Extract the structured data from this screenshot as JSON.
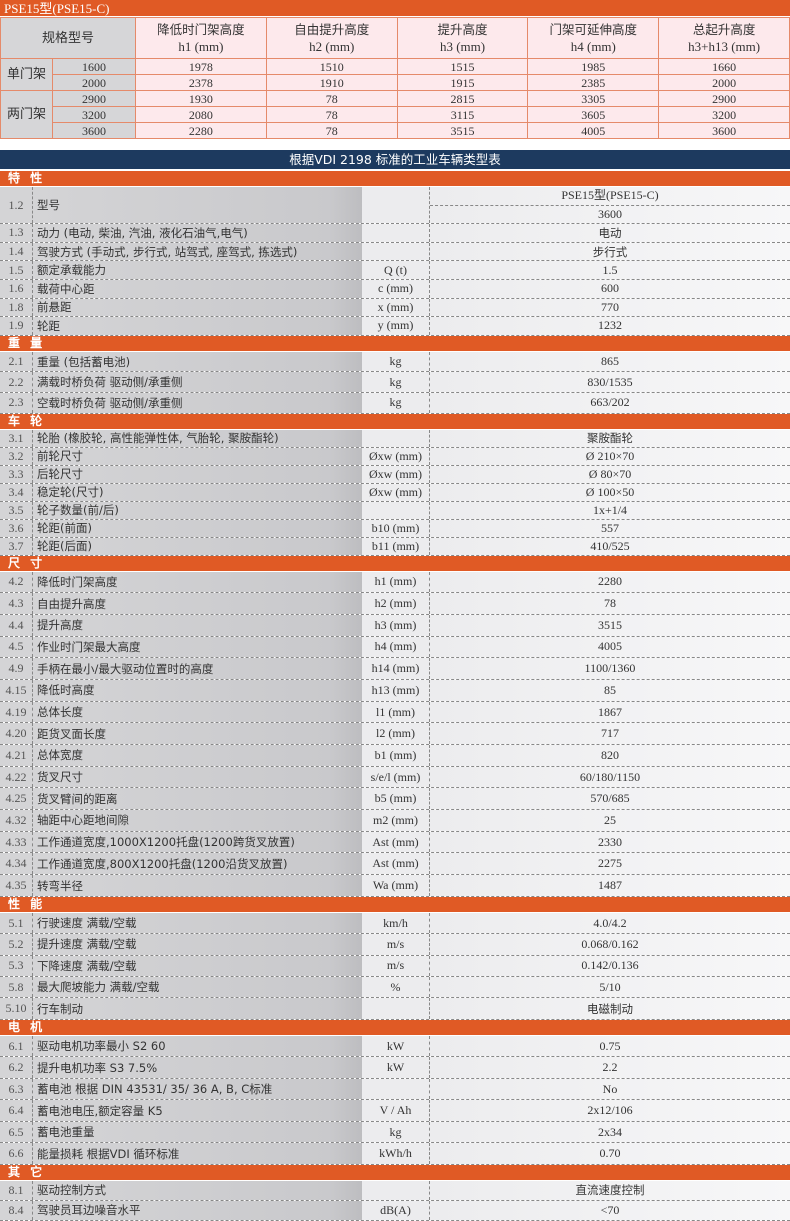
{
  "mast_table": {
    "title": "PSE15型(PSE15-C)",
    "spec_label": "规格型号",
    "columns": [
      [
        "降低时门架高度",
        "h1 (mm)"
      ],
      [
        "自由提升高度",
        "h2 (mm)"
      ],
      [
        "提升高度",
        "h3 (mm)"
      ],
      [
        "门架可延伸高度",
        "h4 (mm)"
      ],
      [
        "总起升高度",
        "h3+h13 (mm)"
      ]
    ],
    "groups": [
      {
        "name": "单门架",
        "rows": [
          [
            "1600",
            "1978",
            "1510",
            "1515",
            "1985",
            "1660"
          ],
          [
            "2000",
            "2378",
            "1910",
            "1915",
            "2385",
            "2000"
          ]
        ]
      },
      {
        "name": "两门架",
        "rows": [
          [
            "2900",
            "1930",
            "78",
            "2815",
            "3305",
            "2900"
          ],
          [
            "3200",
            "2080",
            "78",
            "3115",
            "3605",
            "3200"
          ],
          [
            "3600",
            "2280",
            "78",
            "3515",
            "4005",
            "3600"
          ]
        ]
      }
    ]
  },
  "vdi_title": "根据VDI 2198 标准的工业车辆类型表",
  "sections": [
    {
      "title": "特 性",
      "h": 18.6,
      "rows": [
        [
          "1.2",
          "型号",
          "",
          [
            "PSE15型(PSE15-C)",
            "3600"
          ]
        ],
        [
          "1.3",
          "动力 (电动, 柴油, 汽油, 液化石油气,电气)",
          "",
          "电动"
        ],
        [
          "1.4",
          "驾驶方式 (手动式, 步行式, 站驾式, 座驾式, 拣选式)",
          "",
          "步行式"
        ],
        [
          "1.5",
          "额定承载能力",
          "Q (t)",
          "1.5"
        ],
        [
          "1.6",
          "载荷中心距",
          "c (mm)",
          "600"
        ],
        [
          "1.8",
          "前悬距",
          "x (mm)",
          "770"
        ],
        [
          "1.9",
          "轮距",
          "y (mm)",
          "1232"
        ]
      ]
    },
    {
      "title": "重 量",
      "h": 20.6,
      "rows": [
        [
          "2.1",
          "重量 (包括蓄电池)",
          "kg",
          "865"
        ],
        [
          "2.2",
          "满载时桥负荷   驱动侧/承重侧",
          "kg",
          "830/1535"
        ],
        [
          "2.3",
          "空载时桥负荷   驱动侧/承重侧",
          "kg",
          "663/202"
        ]
      ]
    },
    {
      "title": "车 轮",
      "h": 18,
      "rows": [
        [
          "3.1",
          "轮胎 (橡胶轮, 高性能弹性体, 气胎轮, 聚胺酯轮)",
          "",
          "聚胺酯轮"
        ],
        [
          "3.2",
          "前轮尺寸",
          "Øxw (mm)",
          "Ø 210×70"
        ],
        [
          "3.3",
          "后轮尺寸",
          "Øxw (mm)",
          "Ø   80×70"
        ],
        [
          "3.4",
          "稳定轮(尺寸)",
          "Øxw (mm)",
          "Ø 100×50"
        ],
        [
          "3.5",
          "轮子数量(前/后)",
          "",
          "1x+1/4"
        ],
        [
          "3.6",
          "轮距(前面)",
          "b10 (mm)",
          "557"
        ],
        [
          "3.7",
          "轮距(后面)",
          "b11 (mm)",
          "410/525"
        ]
      ]
    },
    {
      "title": "尺 寸",
      "h": 21.7,
      "rows": [
        [
          "4.2",
          "降低时门架高度",
          "h1 (mm)",
          "2280"
        ],
        [
          "4.3",
          "自由提升高度",
          "h2 (mm)",
          "78"
        ],
        [
          "4.4",
          "提升高度",
          "h3 (mm)",
          "3515"
        ],
        [
          "4.5",
          "作业时门架最大高度",
          "h4 (mm)",
          "4005"
        ],
        [
          "4.9",
          "手柄在最小/最大驱动位置时的高度",
          "h14 (mm)",
          "1100/1360"
        ],
        [
          "4.15",
          "降低时高度",
          "h13 (mm)",
          "85"
        ],
        [
          "4.19",
          "总体长度",
          "l1 (mm)",
          "1867"
        ],
        [
          "4.20",
          "距货叉面长度",
          "l2 (mm)",
          "717"
        ],
        [
          "4.21",
          "总体宽度",
          "b1 (mm)",
          "820"
        ],
        [
          "4.22",
          "货叉尺寸",
          "s/e/l (mm)",
          "60/180/1150"
        ],
        [
          "4.25",
          "货叉臂间的距离",
          "b5 (mm)",
          "570/685"
        ],
        [
          "4.32",
          "轴距中心距地间隙",
          "m2 (mm)",
          "25"
        ],
        [
          "4.33",
          "工作通道宽度,1000X1200托盘(1200跨货叉放置)",
          "Ast (mm)",
          "2330"
        ],
        [
          "4.34",
          "工作通道宽度,800X1200托盘(1200沿货叉放置)",
          "Ast (mm)",
          "2275"
        ],
        [
          "4.35",
          "转弯半径",
          "Wa (mm)",
          "1487"
        ]
      ]
    },
    {
      "title": "性 能",
      "h": 21.4,
      "rows": [
        [
          "5.1",
          "行驶速度   满载/空载",
          "km/h",
          "4.0/4.2"
        ],
        [
          "5.2",
          "提升速度   满载/空载",
          "m/s",
          "0.068/0.162"
        ],
        [
          "5.3",
          "下降速度   满载/空载",
          "m/s",
          "0.142/0.136"
        ],
        [
          "5.8",
          "最大爬坡能力   满载/空载",
          "%",
          "5/10"
        ],
        [
          "5.10",
          "行车制动",
          "",
          "电磁制动"
        ]
      ]
    },
    {
      "title": "电 机",
      "h": 21.5,
      "rows": [
        [
          "6.1",
          "驱动电机功率最小 S2 60",
          "kW",
          "0.75"
        ],
        [
          "6.2",
          "提升电机功率 S3  7.5%",
          "kW",
          "2.2"
        ],
        [
          "6.3",
          "蓄电池 根据 DIN 43531/ 35/ 36 A, B, C标准",
          "",
          "No"
        ],
        [
          "6.4",
          "蓄电池电压,额定容量 K5",
          "V / Ah",
          "2x12/106"
        ],
        [
          "6.5",
          "蓄电池重量",
          "kg",
          "2x34"
        ],
        [
          "6.6",
          "能量损耗  根据VDI 循环标准",
          "kWh/h",
          "0.70"
        ]
      ]
    },
    {
      "title": "其 它",
      "h": 20,
      "rows": [
        [
          "8.1",
          "驱动控制方式",
          "",
          "直流速度控制"
        ],
        [
          "8.4",
          "驾驶员耳边噪音水平",
          "dB(A)",
          "<70"
        ]
      ]
    }
  ],
  "colors": {
    "orange": "#e05a25",
    "navy": "#1d3a5f",
    "pink": "#fde9ec",
    "gray": "#d4d4d6"
  }
}
